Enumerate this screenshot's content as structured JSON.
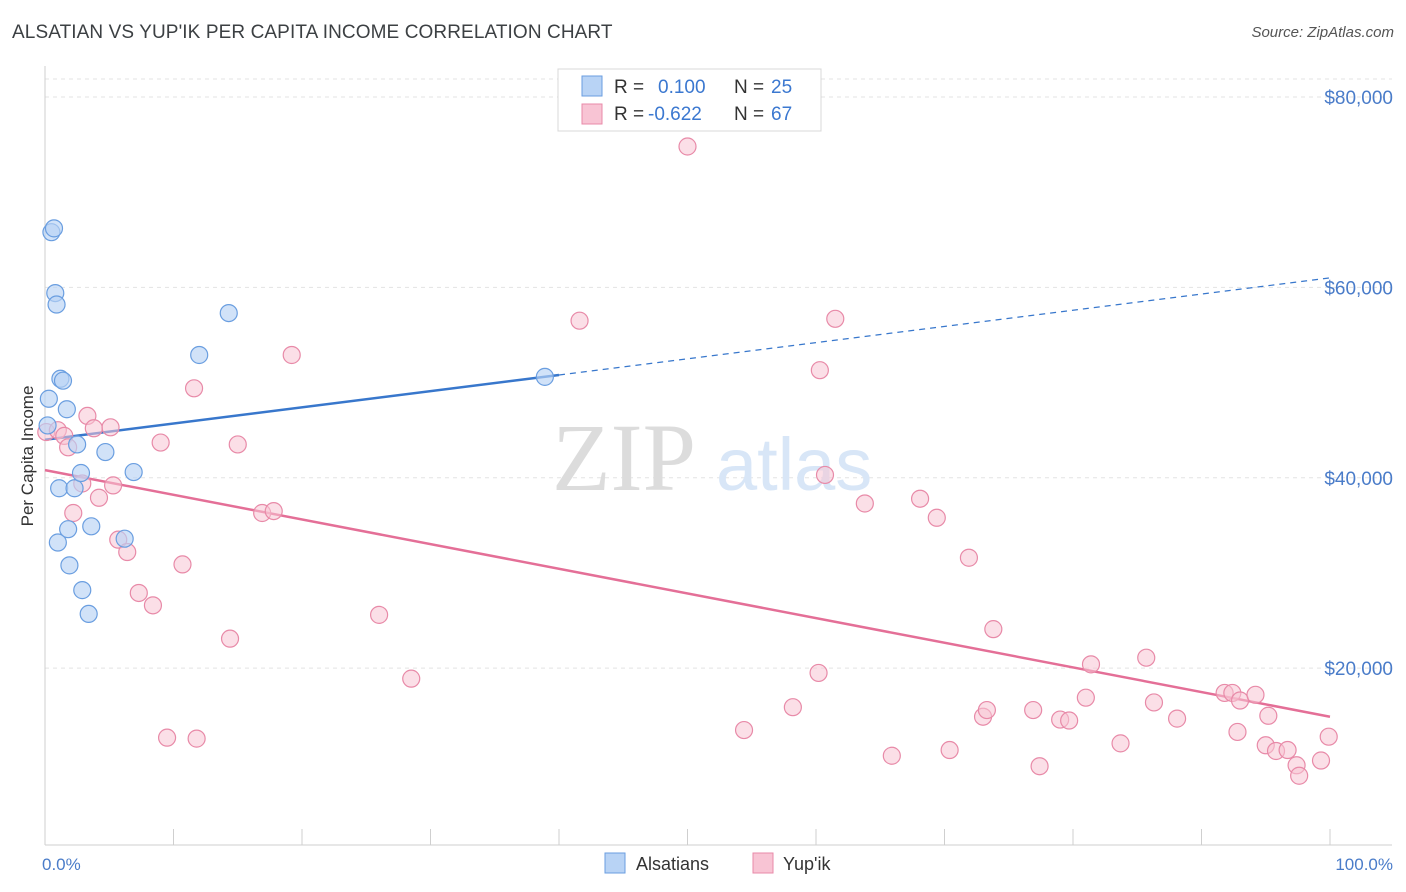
{
  "title": "ALSATIAN VS YUP'IK PER CAPITA INCOME CORRELATION CHART",
  "source": "Source: ZipAtlas.com",
  "watermark": {
    "zip": "ZIP",
    "atlas": "atlas"
  },
  "colors": {
    "alsatian_fill": "#b8d3f5",
    "alsatian_stroke": "#6a9ee0",
    "alsatian_line": "#3877cc",
    "yupik_fill": "#f8c4d4",
    "yupik_stroke": "#e88aa8",
    "yupik_line": "#e46f97",
    "axis_text": "#4a7cc9",
    "grid": "#e3e3e3"
  },
  "legend": {
    "alsatian": {
      "r_label": "R =",
      "r_value": "0.100",
      "n_label": "N =",
      "n_value": "25"
    },
    "yupik": {
      "r_label": "R =",
      "r_value": "-0.622",
      "n_label": "N =",
      "n_value": "67"
    }
  },
  "bottom_legend": [
    "Alsatians",
    "Yup'ik"
  ],
  "chart_data": {
    "type": "scatter",
    "title": "ALSATIAN VS YUP'IK PER CAPITA INCOME CORRELATION CHART",
    "xlabel": "",
    "ylabel": "Per Capita Income",
    "xlim": [
      0,
      100
    ],
    "ylim": [
      0,
      82000
    ],
    "x_tick_labels": [
      "0.0%",
      "100.0%"
    ],
    "y_ticks": [
      20000,
      40000,
      60000,
      80000
    ],
    "y_tick_labels": [
      "$20,000",
      "$40,000",
      "$60,000",
      "$80,000"
    ],
    "grid": "horizontal dashed",
    "legend_position": "top-center",
    "series": [
      {
        "name": "Alsatians",
        "r": 0.1,
        "n": 25,
        "trend": {
          "x": [
            0,
            40
          ],
          "y": [
            44000,
            50800
          ],
          "dashed_extension_to": [
            100,
            61000
          ]
        },
        "points": [
          [
            0.2,
            45500
          ],
          [
            0.3,
            48300
          ],
          [
            0.5,
            65800
          ],
          [
            0.7,
            66200
          ],
          [
            0.8,
            59400
          ],
          [
            0.9,
            58200
          ],
          [
            1.2,
            50400
          ],
          [
            1.4,
            50200
          ],
          [
            1.7,
            47200
          ],
          [
            1.1,
            38900
          ],
          [
            1.0,
            33200
          ],
          [
            1.8,
            34600
          ],
          [
            1.9,
            30800
          ],
          [
            2.3,
            38900
          ],
          [
            2.5,
            43500
          ],
          [
            2.8,
            40500
          ],
          [
            2.9,
            28200
          ],
          [
            3.4,
            25700
          ],
          [
            3.6,
            34900
          ],
          [
            4.7,
            42700
          ],
          [
            6.2,
            33600
          ],
          [
            6.9,
            40600
          ],
          [
            12.0,
            52900
          ],
          [
            14.3,
            57300
          ],
          [
            38.9,
            50600
          ]
        ]
      },
      {
        "name": "Yup'ik",
        "r": -0.622,
        "n": 67,
        "trend": {
          "x": [
            0,
            100
          ],
          "y": [
            40800,
            14900
          ]
        },
        "points": [
          [
            0.1,
            44800
          ],
          [
            1.0,
            45000
          ],
          [
            1.5,
            44400
          ],
          [
            1.8,
            43200
          ],
          [
            2.2,
            36300
          ],
          [
            2.9,
            39400
          ],
          [
            3.3,
            46500
          ],
          [
            3.8,
            45200
          ],
          [
            4.2,
            37900
          ],
          [
            5.1,
            45300
          ],
          [
            5.3,
            39200
          ],
          [
            5.7,
            33500
          ],
          [
            6.4,
            32200
          ],
          [
            7.3,
            27900
          ],
          [
            8.4,
            26600
          ],
          [
            9.0,
            43700
          ],
          [
            9.5,
            12700
          ],
          [
            10.7,
            30900
          ],
          [
            11.6,
            49400
          ],
          [
            11.8,
            12600
          ],
          [
            14.4,
            23100
          ],
          [
            15.0,
            43500
          ],
          [
            16.9,
            36300
          ],
          [
            17.8,
            36500
          ],
          [
            19.2,
            52900
          ],
          [
            26.0,
            25600
          ],
          [
            28.5,
            18900
          ],
          [
            41.6,
            56500
          ],
          [
            50.0,
            74800
          ],
          [
            54.4,
            13500
          ],
          [
            58.2,
            15900
          ],
          [
            60.2,
            19500
          ],
          [
            60.3,
            51300
          ],
          [
            60.7,
            40300
          ],
          [
            61.5,
            56700
          ],
          [
            63.8,
            37300
          ],
          [
            65.9,
            10800
          ],
          [
            68.1,
            37800
          ],
          [
            69.4,
            35800
          ],
          [
            70.4,
            11400
          ],
          [
            71.9,
            31600
          ],
          [
            73.0,
            14900
          ],
          [
            73.3,
            15600
          ],
          [
            73.8,
            24100
          ],
          [
            76.9,
            15600
          ],
          [
            77.4,
            9700
          ],
          [
            79.0,
            14600
          ],
          [
            79.7,
            14500
          ],
          [
            81.0,
            16900
          ],
          [
            81.4,
            20400
          ],
          [
            83.7,
            12100
          ],
          [
            85.7,
            21100
          ],
          [
            86.3,
            16400
          ],
          [
            88.1,
            14700
          ],
          [
            91.8,
            17400
          ],
          [
            92.4,
            17400
          ],
          [
            92.8,
            13300
          ],
          [
            93.0,
            16600
          ],
          [
            94.2,
            17200
          ],
          [
            95.0,
            11900
          ],
          [
            95.2,
            15000
          ],
          [
            95.8,
            11300
          ],
          [
            96.7,
            11400
          ],
          [
            97.4,
            9800
          ],
          [
            97.6,
            8700
          ],
          [
            99.3,
            10300
          ],
          [
            99.9,
            12800
          ]
        ]
      }
    ]
  }
}
